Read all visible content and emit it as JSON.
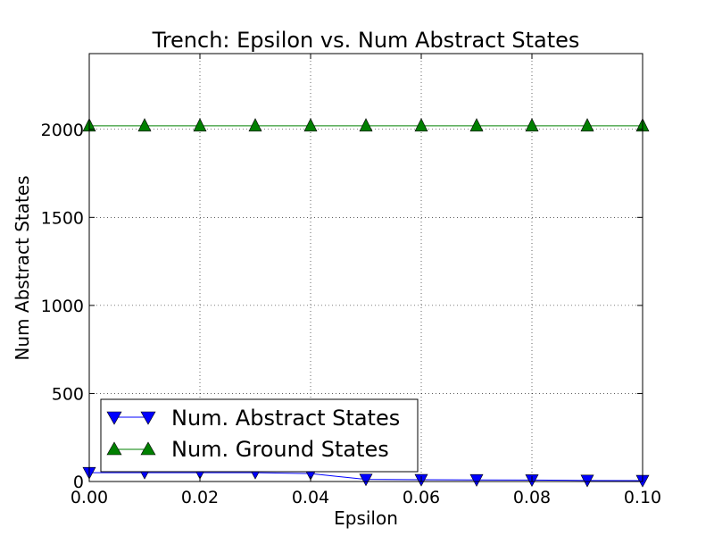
{
  "chart_data": {
    "type": "line",
    "title": "Trench: Epsilon vs. Num Abstract States",
    "xlabel": "Epsilon",
    "ylabel": "Num Abstract States",
    "xlim": [
      0.0,
      0.1
    ],
    "ylim": [
      0,
      2430
    ],
    "grid": true,
    "legend_position": "lower-left",
    "x": [
      0.0,
      0.01,
      0.02,
      0.03,
      0.04,
      0.05,
      0.06,
      0.07,
      0.08,
      0.09,
      0.1
    ],
    "xticks": [
      0.0,
      0.02,
      0.04,
      0.06,
      0.08,
      0.1
    ],
    "xtick_labels": [
      "0.00",
      "0.02",
      "0.04",
      "0.06",
      "0.08",
      "0.10"
    ],
    "yticks": [
      0,
      500,
      1000,
      1500,
      2000
    ],
    "ytick_labels": [
      "0",
      "500",
      "1000",
      "1500",
      "2000"
    ],
    "series": [
      {
        "name": "Num. Abstract States",
        "color": "#0000ff",
        "marker": "triangle-down",
        "values": [
          50,
          50,
          50,
          50,
          45,
          12,
          10,
          9,
          8,
          6,
          5
        ]
      },
      {
        "name": "Num. Ground States",
        "color": "#008000",
        "marker": "triangle-up",
        "values": [
          2020,
          2020,
          2020,
          2020,
          2020,
          2020,
          2020,
          2020,
          2020,
          2020,
          2020
        ]
      }
    ]
  }
}
